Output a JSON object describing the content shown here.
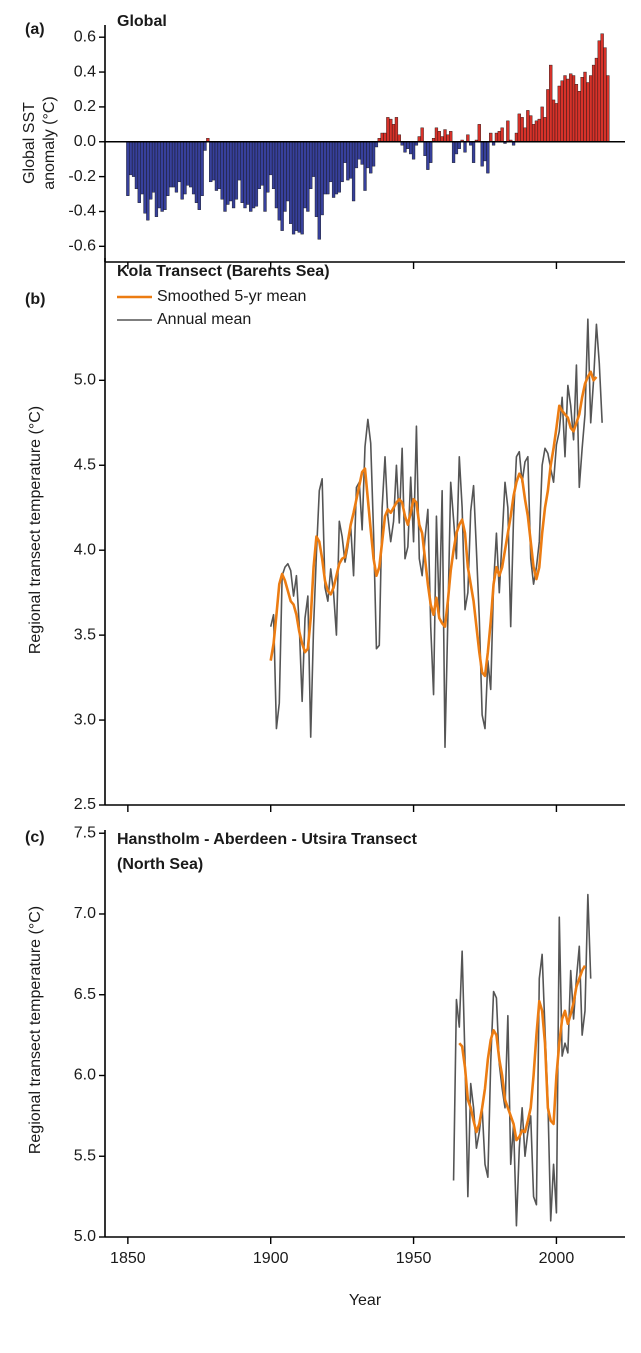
{
  "chart_data": [
    {
      "type": "bar",
      "panel_label": "(a)",
      "title": "Global",
      "ylabel": [
        "Global SST",
        "anomaly (°C)"
      ],
      "colors": {
        "positive": "#d7322a",
        "negative": "#37409b"
      },
      "xlim": [
        1842,
        2024
      ],
      "xticks": [
        1850,
        1900,
        1950,
        2000
      ],
      "show_xtick_labels": false,
      "ylim": [
        -0.69,
        0.67
      ],
      "yticks": [
        0.6,
        0.4,
        0.2,
        {
          "value": 0,
          "label": "0.0"
        },
        -0.2,
        -0.4,
        -0.6
      ],
      "x": [
        1850,
        1851,
        1852,
        1853,
        1854,
        1855,
        1856,
        1857,
        1858,
        1859,
        1860,
        1861,
        1862,
        1863,
        1864,
        1865,
        1866,
        1867,
        1868,
        1869,
        1870,
        1871,
        1872,
        1873,
        1874,
        1875,
        1876,
        1877,
        1878,
        1879,
        1880,
        1881,
        1882,
        1883,
        1884,
        1885,
        1886,
        1887,
        1888,
        1889,
        1890,
        1891,
        1892,
        1893,
        1894,
        1895,
        1896,
        1897,
        1898,
        1899,
        1900,
        1901,
        1902,
        1903,
        1904,
        1905,
        1906,
        1907,
        1908,
        1909,
        1910,
        1911,
        1912,
        1913,
        1914,
        1915,
        1916,
        1917,
        1918,
        1919,
        1920,
        1921,
        1922,
        1923,
        1924,
        1925,
        1926,
        1927,
        1928,
        1929,
        1930,
        1931,
        1932,
        1933,
        1934,
        1935,
        1936,
        1937,
        1938,
        1939,
        1940,
        1941,
        1942,
        1943,
        1944,
        1945,
        1946,
        1947,
        1948,
        1949,
        1950,
        1951,
        1952,
        1953,
        1954,
        1955,
        1956,
        1957,
        1958,
        1959,
        1960,
        1961,
        1962,
        1963,
        1964,
        1965,
        1966,
        1967,
        1968,
        1969,
        1970,
        1971,
        1972,
        1973,
        1974,
        1975,
        1976,
        1977,
        1978,
        1979,
        1980,
        1981,
        1982,
        1983,
        1984,
        1985,
        1986,
        1987,
        1988,
        1989,
        1990,
        1991,
        1992,
        1993,
        1994,
        1995,
        1996,
        1997,
        1998,
        1999,
        2000,
        2001,
        2002,
        2003,
        2004,
        2005,
        2006,
        2007,
        2008,
        2009,
        2010,
        2011,
        2012,
        2013,
        2014,
        2015,
        2016,
        2017,
        2018
      ],
      "values": [
        -0.31,
        -0.19,
        -0.2,
        -0.27,
        -0.35,
        -0.3,
        -0.41,
        -0.45,
        -0.33,
        -0.29,
        -0.43,
        -0.38,
        -0.4,
        -0.39,
        -0.31,
        -0.26,
        -0.26,
        -0.29,
        -0.23,
        -0.33,
        -0.3,
        -0.25,
        -0.26,
        -0.3,
        -0.35,
        -0.39,
        -0.31,
        -0.05,
        0.02,
        -0.23,
        -0.22,
        -0.28,
        -0.27,
        -0.33,
        -0.4,
        -0.36,
        -0.34,
        -0.38,
        -0.33,
        -0.22,
        -0.35,
        -0.38,
        -0.36,
        -0.4,
        -0.38,
        -0.37,
        -0.27,
        -0.25,
        -0.4,
        -0.29,
        -0.19,
        -0.27,
        -0.38,
        -0.45,
        -0.51,
        -0.4,
        -0.34,
        -0.47,
        -0.53,
        -0.51,
        -0.52,
        -0.53,
        -0.38,
        -0.4,
        -0.27,
        -0.2,
        -0.43,
        -0.56,
        -0.42,
        -0.3,
        -0.3,
        -0.23,
        -0.32,
        -0.3,
        -0.29,
        -0.23,
        -0.12,
        -0.22,
        -0.21,
        -0.34,
        -0.15,
        -0.1,
        -0.13,
        -0.28,
        -0.15,
        -0.18,
        -0.14,
        -0.03,
        0.02,
        0.05,
        0.05,
        0.14,
        0.13,
        0.1,
        0.14,
        0.04,
        -0.02,
        -0.06,
        -0.04,
        -0.07,
        -0.1,
        -0.02,
        0.03,
        0.08,
        -0.08,
        -0.16,
        -0.12,
        0.02,
        0.08,
        0.06,
        0.03,
        0.07,
        0.04,
        0.06,
        -0.12,
        -0.07,
        -0.04,
        0.01,
        -0.06,
        0.04,
        -0.02,
        -0.12,
        0.01,
        0.1,
        -0.14,
        -0.11,
        -0.18,
        0.05,
        -0.02,
        0.05,
        0.06,
        0.08,
        -0.01,
        0.12,
        0.01,
        -0.02,
        0.05,
        0.16,
        0.14,
        0.08,
        0.18,
        0.15,
        0.1,
        0.12,
        0.13,
        0.2,
        0.14,
        0.3,
        0.44,
        0.24,
        0.22,
        0.32,
        0.35,
        0.38,
        0.36,
        0.39,
        0.38,
        0.33,
        0.29,
        0.37,
        0.4,
        0.34,
        0.38,
        0.44,
        0.48,
        0.58,
        0.62,
        0.54,
        0.38
      ]
    },
    {
      "type": "line",
      "panel_label": "(b)",
      "title": "Kola Transect (Barents Sea)",
      "ylabel": "Regional transect temperature (°C)",
      "legend": "upper left",
      "xlim": [
        1842,
        2024
      ],
      "xticks": [
        1850,
        1900,
        1950,
        2000
      ],
      "show_xtick_labels": false,
      "ylim": [
        2.5,
        5.72
      ],
      "yticks": [
        2.5,
        {
          "value": 3,
          "label": "3.0"
        },
        3.5,
        {
          "value": 4,
          "label": "4.0"
        },
        4.5,
        {
          "value": 5,
          "label": "5.0"
        }
      ],
      "series": [
        {
          "name": "Smoothed 5-yr mean",
          "color": "#ec7c12",
          "line_width": 2.6,
          "x": [
            1900,
            1901,
            1902,
            1903,
            1904,
            1905,
            1906,
            1907,
            1908,
            1909,
            1910,
            1911,
            1912,
            1913,
            1914,
            1915,
            1916,
            1917,
            1918,
            1919,
            1920,
            1921,
            1922,
            1923,
            1924,
            1925,
            1926,
            1927,
            1928,
            1929,
            1930,
            1931,
            1932,
            1933,
            1934,
            1935,
            1936,
            1937,
            1938,
            1939,
            1940,
            1941,
            1942,
            1943,
            1944,
            1945,
            1946,
            1947,
            1948,
            1949,
            1950,
            1951,
            1952,
            1953,
            1954,
            1955,
            1956,
            1957,
            1958,
            1959,
            1960,
            1961,
            1962,
            1963,
            1964,
            1965,
            1966,
            1967,
            1968,
            1969,
            1970,
            1971,
            1972,
            1973,
            1974,
            1975,
            1976,
            1977,
            1978,
            1979,
            1980,
            1981,
            1982,
            1983,
            1984,
            1985,
            1986,
            1987,
            1988,
            1989,
            1990,
            1991,
            1992,
            1993,
            1994,
            1995,
            1996,
            1997,
            1998,
            1999,
            2000,
            2001,
            2002,
            2003,
            2004,
            2005,
            2006,
            2007,
            2008,
            2009,
            2010,
            2011,
            2012,
            2013,
            2014
          ],
          "values": [
            3.35,
            3.45,
            3.62,
            3.8,
            3.86,
            3.82,
            3.76,
            3.7,
            3.68,
            3.62,
            3.52,
            3.45,
            3.4,
            3.42,
            3.6,
            3.9,
            4.08,
            4.05,
            3.95,
            3.82,
            3.76,
            3.74,
            3.78,
            3.85,
            3.92,
            3.95,
            3.96,
            4.05,
            4.15,
            4.22,
            4.3,
            4.38,
            4.46,
            4.48,
            4.3,
            4.12,
            3.95,
            3.85,
            3.9,
            4.05,
            4.2,
            4.24,
            4.22,
            4.25,
            4.28,
            4.3,
            4.28,
            4.2,
            4.15,
            4.22,
            4.3,
            4.28,
            4.15,
            4.1,
            3.95,
            3.8,
            3.68,
            3.62,
            3.72,
            3.6,
            3.57,
            3.55,
            3.7,
            3.88,
            4.0,
            4.1,
            4.15,
            4.18,
            4.1,
            3.9,
            3.8,
            3.7,
            3.55,
            3.4,
            3.28,
            3.26,
            3.4,
            3.58,
            3.8,
            3.9,
            3.85,
            3.9,
            4.0,
            4.1,
            4.2,
            4.32,
            4.4,
            4.45,
            4.42,
            4.3,
            4.2,
            4.05,
            3.9,
            3.83,
            3.9,
            4.1,
            4.25,
            4.35,
            4.5,
            4.6,
            4.72,
            4.85,
            4.82,
            4.8,
            4.78,
            4.72,
            4.7,
            4.75,
            4.8,
            4.9,
            4.98,
            5.02,
            5.05,
            5.0,
            5.02
          ]
        },
        {
          "name": "Annual mean",
          "color": "#555555",
          "line_width": 1.6,
          "x": [
            1900,
            1901,
            1902,
            1903,
            1904,
            1905,
            1906,
            1907,
            1908,
            1909,
            1910,
            1911,
            1912,
            1913,
            1914,
            1915,
            1916,
            1917,
            1918,
            1919,
            1920,
            1921,
            1922,
            1923,
            1924,
            1925,
            1926,
            1927,
            1928,
            1929,
            1930,
            1931,
            1932,
            1933,
            1934,
            1935,
            1936,
            1937,
            1938,
            1939,
            1940,
            1941,
            1942,
            1943,
            1944,
            1945,
            1946,
            1947,
            1948,
            1949,
            1950,
            1951,
            1952,
            1953,
            1954,
            1955,
            1956,
            1957,
            1958,
            1959,
            1960,
            1961,
            1962,
            1963,
            1964,
            1965,
            1966,
            1967,
            1968,
            1969,
            1970,
            1971,
            1972,
            1973,
            1974,
            1975,
            1976,
            1977,
            1978,
            1979,
            1980,
            1981,
            1982,
            1983,
            1984,
            1985,
            1986,
            1987,
            1988,
            1989,
            1990,
            1991,
            1992,
            1993,
            1994,
            1995,
            1996,
            1997,
            1998,
            1999,
            2000,
            2001,
            2002,
            2003,
            2004,
            2005,
            2006,
            2007,
            2008,
            2009,
            2010,
            2011,
            2012,
            2013,
            2014,
            2015,
            2016
          ],
          "values": [
            3.55,
            3.62,
            2.95,
            3.1,
            3.85,
            3.9,
            3.92,
            3.88,
            3.73,
            3.85,
            3.55,
            3.11,
            3.6,
            3.73,
            2.9,
            3.55,
            3.98,
            4.35,
            4.42,
            3.78,
            3.7,
            3.89,
            3.75,
            3.5,
            4.17,
            4.08,
            3.93,
            4.02,
            4.14,
            3.85,
            4.37,
            4.4,
            4.12,
            4.61,
            4.77,
            4.63,
            4.1,
            3.42,
            3.44,
            4.25,
            4.55,
            4.2,
            4.05,
            4.17,
            4.5,
            4.16,
            4.6,
            3.95,
            4.02,
            4.43,
            4.05,
            4.73,
            3.95,
            3.85,
            4.07,
            4.24,
            3.55,
            3.15,
            4.2,
            3.62,
            4.35,
            2.84,
            3.6,
            4.4,
            4.18,
            3.95,
            4.55,
            4.25,
            3.65,
            3.75,
            4.23,
            4.38,
            4.0,
            3.6,
            3.03,
            2.95,
            3.35,
            3.18,
            3.8,
            4.1,
            3.75,
            4.07,
            4.4,
            4.25,
            3.55,
            4.2,
            4.55,
            4.58,
            4.4,
            4.52,
            4.55,
            3.95,
            3.8,
            3.9,
            4.05,
            4.5,
            4.6,
            4.57,
            4.48,
            4.4,
            4.62,
            4.7,
            4.9,
            4.55,
            4.97,
            4.85,
            4.65,
            5.09,
            4.37,
            4.6,
            4.8,
            5.36,
            4.75,
            5.0,
            5.33,
            5.1,
            4.75
          ]
        }
      ]
    },
    {
      "type": "line",
      "panel_label": "(c)",
      "title": [
        "Hanstholm - Aberdeen - Utsira Transect",
        "(North Sea)"
      ],
      "ylabel": "Regional transect temperature (°C)",
      "xlabel": "Year",
      "xlim": [
        1842,
        2024
      ],
      "xticks": [
        1850,
        1900,
        1950,
        2000
      ],
      "show_xtick_labels": true,
      "ylim": [
        5.0,
        7.52
      ],
      "yticks": [
        {
          "value": 5,
          "label": "5.0"
        },
        5.5,
        {
          "value": 6,
          "label": "6.0"
        },
        6.5,
        {
          "value": 7,
          "label": "7.0"
        },
        7.5
      ],
      "series": [
        {
          "name": "Smoothed 5-yr mean",
          "color": "#ec7c12",
          "line_width": 2.6,
          "x": [
            1966,
            1967,
            1968,
            1969,
            1970,
            1971,
            1972,
            1973,
            1974,
            1975,
            1976,
            1977,
            1978,
            1979,
            1980,
            1981,
            1982,
            1983,
            1984,
            1985,
            1986,
            1987,
            1988,
            1989,
            1990,
            1991,
            1992,
            1993,
            1994,
            1995,
            1996,
            1997,
            1998,
            1999,
            2000,
            2001,
            2002,
            2003,
            2004,
            2005,
            2006,
            2007,
            2008,
            2009,
            2010
          ],
          "values": [
            6.2,
            6.18,
            6.05,
            5.85,
            5.8,
            5.72,
            5.65,
            5.7,
            5.8,
            5.92,
            6.1,
            6.22,
            6.28,
            6.25,
            6.1,
            6.0,
            5.85,
            5.8,
            5.75,
            5.7,
            5.6,
            5.62,
            5.66,
            5.65,
            5.72,
            5.8,
            6.0,
            6.25,
            6.46,
            6.4,
            6.2,
            5.8,
            5.72,
            5.7,
            6.0,
            6.2,
            6.35,
            6.4,
            6.32,
            6.38,
            6.45,
            6.55,
            6.6,
            6.65,
            6.68
          ]
        },
        {
          "name": "Annual mean",
          "color": "#555555",
          "line_width": 1.6,
          "x": [
            1964,
            1965,
            1966,
            1967,
            1968,
            1969,
            1970,
            1971,
            1972,
            1973,
            1974,
            1975,
            1976,
            1977,
            1978,
            1979,
            1980,
            1981,
            1982,
            1983,
            1984,
            1985,
            1986,
            1987,
            1988,
            1989,
            1990,
            1991,
            1992,
            1993,
            1994,
            1995,
            1996,
            1997,
            1998,
            1999,
            2000,
            2001,
            2002,
            2003,
            2004,
            2005,
            2006,
            2007,
            2008,
            2009,
            2010,
            2011,
            2012
          ],
          "values": [
            5.35,
            6.47,
            6.3,
            6.77,
            6.1,
            5.25,
            5.95,
            5.8,
            5.55,
            5.65,
            5.8,
            5.45,
            5.37,
            6.08,
            6.52,
            6.48,
            6.07,
            5.92,
            5.8,
            6.37,
            5.45,
            5.7,
            5.07,
            5.55,
            5.8,
            5.5,
            5.65,
            5.75,
            5.25,
            5.2,
            6.6,
            6.75,
            6.28,
            5.85,
            5.1,
            5.45,
            5.15,
            6.98,
            6.12,
            6.2,
            6.14,
            6.65,
            6.35,
            6.6,
            6.8,
            6.25,
            6.4,
            7.12,
            6.6
          ]
        }
      ]
    }
  ]
}
